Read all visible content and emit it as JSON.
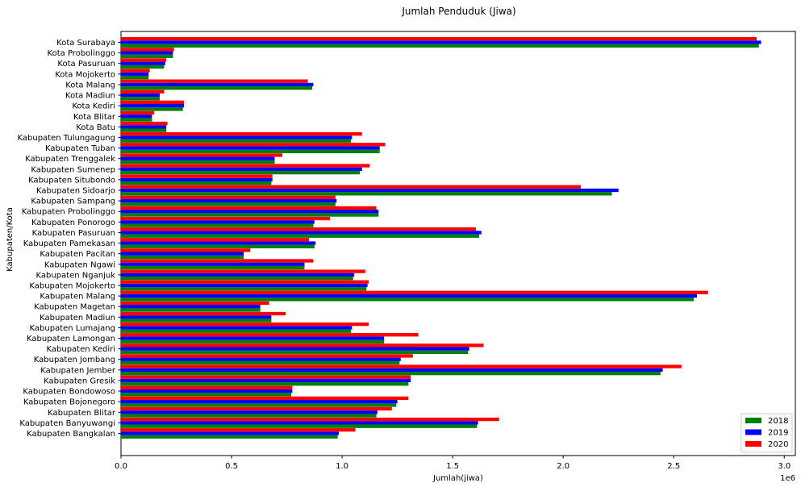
{
  "chart_data": {
    "type": "bar",
    "orientation": "horizontal",
    "title": "Jumlah Penduduk (Jiwa)",
    "xlabel": "Jumlah(jiwa)",
    "ylabel": "Kabupaten/Kota",
    "x_offset_text": "1e6",
    "xlim": [
      0,
      3.05
    ],
    "xticks": [
      0,
      0.5,
      1.0,
      1.5,
      2.0,
      2.5,
      3.0
    ],
    "xtick_labels": [
      "0.0",
      "0.5",
      "1.0",
      "1.5",
      "2.0",
      "2.5",
      "3.0"
    ],
    "grid": false,
    "legend_position": "bottom-right",
    "categories": [
      "Kabupaten Bangkalan",
      "Kabupaten Banyuwangi",
      "Kabupaten Blitar",
      "Kabupaten Bojonegoro",
      "Kabupaten Bondowoso",
      "Kabupaten Gresik",
      "Kabupaten Jember",
      "Kabupaten Jombang",
      "Kabupaten Kediri",
      "Kabupaten Lamongan",
      "Kabupaten Lumajang",
      "Kabupaten Madiun",
      "Kabupaten Magetan",
      "Kabupaten Malang",
      "Kabupaten Mojokerto",
      "Kabupaten Nganjuk",
      "Kabupaten Ngawi",
      "Kabupaten Pacitan",
      "Kabupaten Pamekasan",
      "Kabupaten Pasuruan",
      "Kabupaten Ponorogo",
      "Kabupaten Probolinggo",
      "Kabupaten Sampang",
      "Kabupaten Sidoarjo",
      "Kabupaten Situbondo",
      "Kabupaten Sumenep",
      "Kabupaten Trenggalek",
      "Kabupaten Tuban",
      "Kabupaten Tulungagung",
      "Kota Batu",
      "Kota Blitar",
      "Kota Kediri",
      "Kota Madiun",
      "Kota Malang",
      "Kota Mojokerto",
      "Kota Pasuruan",
      "Kota Probolinggo",
      "Kota Surabaya"
    ],
    "series": [
      {
        "name": "2018",
        "color": "#008000",
        "values": [
          0.98,
          1.61,
          1.155,
          1.245,
          0.77,
          1.3,
          2.44,
          1.26,
          1.57,
          1.19,
          1.04,
          0.68,
          0.63,
          2.59,
          1.11,
          1.05,
          0.83,
          0.555,
          0.875,
          1.62,
          0.87,
          1.165,
          0.97,
          2.22,
          0.68,
          1.08,
          0.695,
          1.17,
          1.04,
          0.205,
          0.14,
          0.28,
          0.175,
          0.865,
          0.125,
          0.195,
          0.235,
          2.885
        ]
      },
      {
        "name": "2019",
        "color": "#0000ff",
        "values": [
          0.985,
          1.615,
          1.16,
          1.25,
          0.775,
          1.31,
          2.45,
          1.265,
          1.575,
          1.19,
          1.045,
          0.68,
          0.63,
          2.605,
          1.115,
          1.055,
          0.83,
          0.555,
          0.88,
          1.63,
          0.875,
          1.165,
          0.975,
          2.25,
          0.685,
          1.09,
          0.695,
          1.17,
          1.045,
          0.205,
          0.14,
          0.285,
          0.175,
          0.87,
          0.125,
          0.2,
          0.235,
          2.895
        ]
      },
      {
        "name": "2020",
        "color": "#ff0000",
        "values": [
          1.06,
          1.71,
          1.225,
          1.3,
          0.775,
          1.31,
          2.535,
          1.32,
          1.64,
          1.345,
          1.12,
          0.745,
          0.67,
          2.655,
          1.12,
          1.105,
          0.87,
          0.585,
          0.85,
          1.605,
          0.945,
          1.155,
          0.97,
          2.08,
          0.685,
          1.125,
          0.73,
          1.195,
          1.09,
          0.21,
          0.15,
          0.285,
          0.195,
          0.845,
          0.13,
          0.205,
          0.24,
          2.875
        ]
      }
    ]
  }
}
